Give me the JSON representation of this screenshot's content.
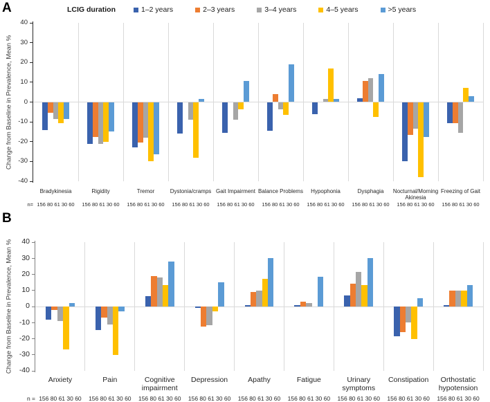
{
  "figure": {
    "panel_a": "A",
    "panel_b": "B",
    "legend_title": "LCIG duration"
  },
  "chart_data": [
    {
      "type": "bar",
      "panel": "A",
      "ylabel": "Change from Baseline in Prevalence, Mean %",
      "ylim": [
        -40,
        40
      ],
      "yticks": [
        40,
        30,
        20,
        10,
        0,
        -10,
        -20,
        -30,
        -40
      ],
      "grid": "zero-line-only",
      "legend_position": "top",
      "n_label": "n=",
      "n_values": "156 80 61 30 60",
      "categories": [
        "Bradykinesia",
        "Rigidity",
        "Tremor",
        "Dystonia/cramps",
        "Gait Impairment",
        "Balance Problems",
        "Hypophonia",
        "Dysphagia",
        "Nocturnal/Morning Akinesia",
        "Freezing of Gait"
      ],
      "series": [
        {
          "name": "1–2 years",
          "color": "#3A62AD",
          "values": [
            -14,
            -21,
            -23,
            -16,
            -15.5,
            -14.5,
            -6,
            2,
            -30,
            -10.5
          ]
        },
        {
          "name": "2–3 years",
          "color": "#ED7D31",
          "values": [
            -5.5,
            -17.5,
            -20.5,
            0,
            0,
            4,
            0,
            10.5,
            -16.5,
            -10.5
          ]
        },
        {
          "name": "3–4 years",
          "color": "#A6A6A6",
          "values": [
            -8.5,
            -21,
            -18,
            -9,
            -9,
            -3.5,
            1.5,
            12,
            -13.5,
            -15.5
          ]
        },
        {
          "name": "4–5 years",
          "color": "#FFC000",
          "values": [
            -10.5,
            -20,
            -30,
            -28,
            -3.5,
            -6.5,
            17,
            -7.5,
            -38,
            7
          ]
        },
        {
          "name": ">5 years",
          "color": "#5B9BD5",
          "values": [
            -8.5,
            -15,
            -26.5,
            1.5,
            10.5,
            19,
            1.5,
            14,
            -17.5,
            3
          ]
        }
      ]
    },
    {
      "type": "bar",
      "panel": "B",
      "ylabel": "Change from Baseline in Prevalence, Mean %",
      "ylim": [
        -40,
        40
      ],
      "yticks": [
        40,
        30,
        20,
        10,
        0,
        -10,
        -20,
        -30,
        -40
      ],
      "grid": "zero-line-only",
      "legend_position": "none",
      "n_label": "n =",
      "n_values": "156 80 61 30 60",
      "categories": [
        "Anxiety",
        "Pain",
        "Cognitive impairment",
        "Depression",
        "Apathy",
        "Fatigue",
        "Urinary symptoms",
        "Constipation",
        "Orthostatic hypotension"
      ],
      "series": [
        {
          "name": "1–2 years",
          "color": "#3A62AD",
          "values": [
            -8,
            -14.5,
            6.5,
            -1,
            1,
            1,
            7,
            -18.5,
            1
          ]
        },
        {
          "name": "2–3 years",
          "color": "#ED7D31",
          "values": [
            -2,
            -7,
            19,
            -12.5,
            9,
            3,
            14,
            -16,
            10
          ]
        },
        {
          "name": "3–4 years",
          "color": "#A6A6A6",
          "values": [
            -9,
            -11,
            18,
            -11.5,
            10,
            2,
            21.5,
            -10,
            10
          ]
        },
        {
          "name": "4–5 years",
          "color": "#FFC000",
          "values": [
            -26.5,
            -30,
            13.5,
            -3,
            17,
            0,
            13.5,
            -20,
            10
          ]
        },
        {
          "name": ">5 years",
          "color": "#5B9BD5",
          "values": [
            2,
            -3,
            28,
            15,
            30,
            18.5,
            30,
            5,
            13.5
          ]
        }
      ]
    }
  ]
}
